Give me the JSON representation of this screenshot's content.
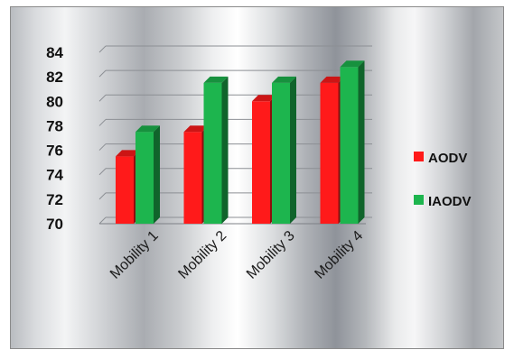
{
  "chart_data": {
    "type": "bar",
    "title": "",
    "xlabel": "",
    "ylabel": "",
    "categories": [
      "Mobility 1",
      "Mobility 2",
      "Mobility 3",
      "Mobility 4"
    ],
    "series": [
      {
        "name": "AODV",
        "values": [
          75.5,
          77.5,
          80.0,
          81.5
        ],
        "color": "#ff1a1a"
      },
      {
        "name": "IAODV",
        "values": [
          77.5,
          81.5,
          81.5,
          82.8
        ],
        "color": "#1db54e"
      }
    ],
    "ylim": [
      70,
      84
    ],
    "yticks": [
      70,
      72,
      74,
      76,
      78,
      80,
      82,
      84
    ],
    "grid": true,
    "legend_position": "right",
    "style": "3d-bar"
  }
}
